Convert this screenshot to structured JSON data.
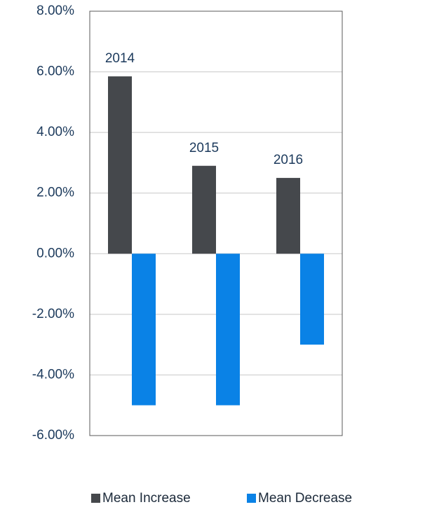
{
  "chart_data": {
    "type": "bar",
    "categories": [
      "2014",
      "2015",
      "2016"
    ],
    "series": [
      {
        "name": "Mean Increase",
        "color": "#45484c",
        "values": [
          5.85,
          2.9,
          2.5
        ]
      },
      {
        "name": "Mean Decrease",
        "color": "#0a82e6",
        "values": [
          -5.0,
          -5.0,
          -3.0
        ]
      }
    ],
    "ylim": [
      -6,
      8
    ],
    "yticks": [
      {
        "value": -6,
        "label": "-6.00%"
      },
      {
        "value": -4,
        "label": "-4.00%"
      },
      {
        "value": -2,
        "label": "-2.00%"
      },
      {
        "value": 0,
        "label": "0.00%"
      },
      {
        "value": 2,
        "label": "2.00%"
      },
      {
        "value": 4,
        "label": "4.00%"
      },
      {
        "value": 6,
        "label": "6.00%"
      },
      {
        "value": 8,
        "label": "8.00%"
      }
    ],
    "grid": true
  }
}
